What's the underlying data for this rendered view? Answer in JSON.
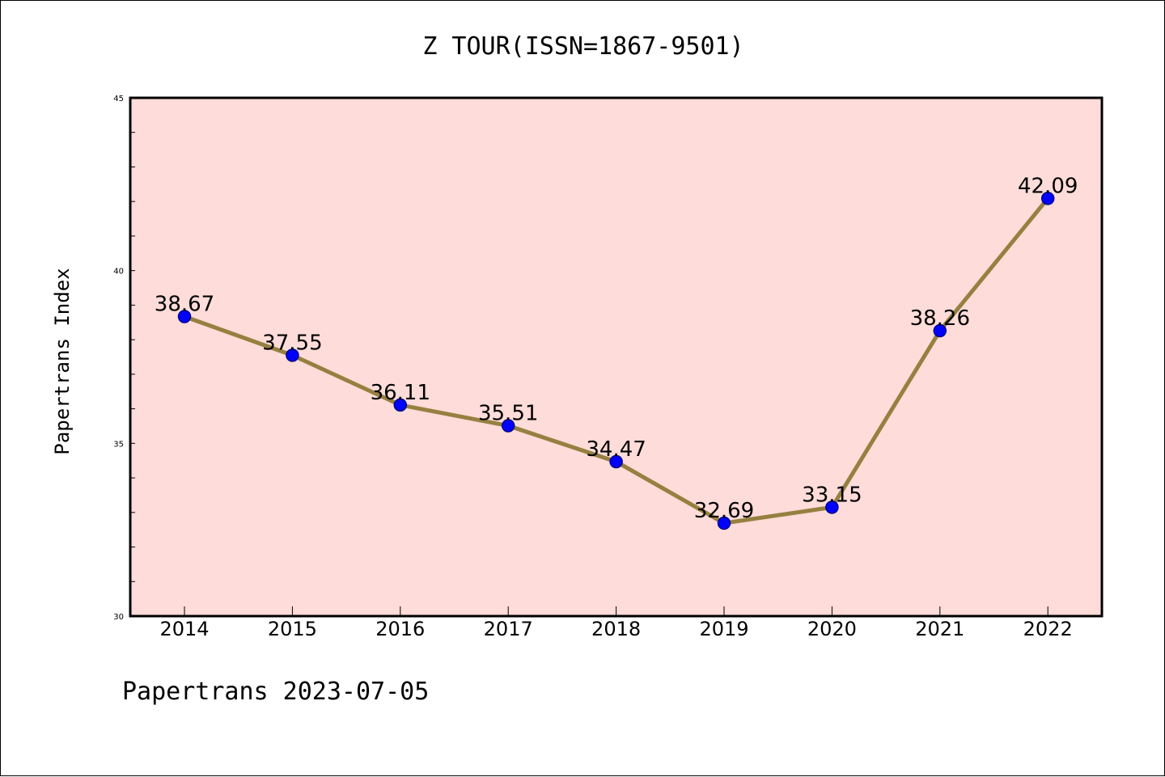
{
  "footer": "Papertrans 2023-07-05",
  "colors": {
    "plot_background": "#fddcd9",
    "line": "#958040",
    "marker": "#0000ff",
    "marker_edge": "#00008b"
  },
  "chart_data": {
    "type": "line",
    "title": "Z TOUR(ISSN=1867-9501)",
    "xlabel": "",
    "ylabel": "Papertrans Index",
    "categories": [
      "2014",
      "2015",
      "2016",
      "2017",
      "2018",
      "2019",
      "2020",
      "2021",
      "2022"
    ],
    "values": [
      38.67,
      37.55,
      36.11,
      35.51,
      34.47,
      32.69,
      33.15,
      38.26,
      42.09
    ],
    "data_labels": [
      "38.67",
      "37.55",
      "36.11",
      "35.51",
      "34.47",
      "32.69",
      "33.15",
      "38.26",
      "42.09"
    ],
    "ylim": [
      30,
      45
    ],
    "yticks": [
      "30",
      "35",
      "40",
      "45"
    ],
    "minor_ytick_step": 1,
    "grid": false,
    "legend": "none"
  }
}
